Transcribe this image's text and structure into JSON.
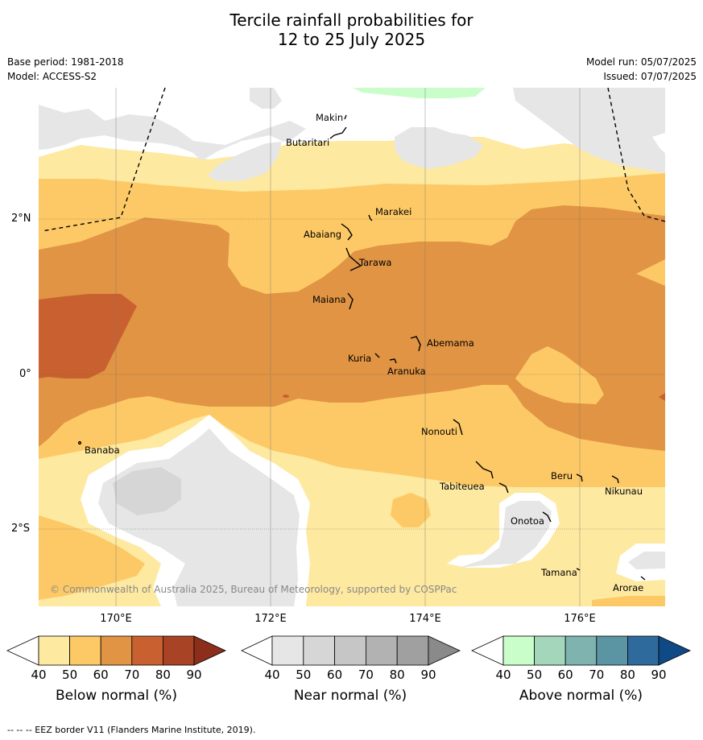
{
  "title": {
    "line1": "Tercile rainfall probabilities for",
    "line2": "12 to 25 July 2025"
  },
  "meta": {
    "base_period": "Base period: 1981-2018",
    "model": "Model: ACCESS-S2",
    "model_run": "Model run: 05/07/2025",
    "issued": "Issued: 07/07/2025"
  },
  "map": {
    "lat_labels": [
      "2°N",
      "0°",
      "2°S"
    ],
    "lon_labels": [
      "170°E",
      "172°E",
      "174°E",
      "176°E"
    ],
    "copyright": "© Commonwealth of Australia 2025, Bureau of Meteorology, supported by COSPPac",
    "places": [
      "Makin",
      "Butaritari",
      "Marakei",
      "Abaiang",
      "Tarawa",
      "Maiana",
      "Abemama",
      "Kuria",
      "Aranuka",
      "Nonouti",
      "Banaba",
      "Tabiteuea",
      "Beru",
      "Nikunau",
      "Onotoa",
      "Tamana",
      "Arorae"
    ],
    "colors": {
      "below_40": "#ffffff",
      "below_50": "#fee9a0",
      "below_60": "#fdc966",
      "below_70": "#e09444",
      "below_80": "#c8612f",
      "near_40": "#e6e6e6",
      "near_50": "#d6d6d6",
      "above_40": "#c9fdca"
    }
  },
  "colorbars": [
    {
      "label": "Below normal (%)",
      "ticks": [
        "40",
        "50",
        "60",
        "70",
        "80",
        "90"
      ],
      "colors": [
        "#ffffff",
        "#fee9a0",
        "#fdc966",
        "#e09444",
        "#c8612f",
        "#a84425",
        "#8b2e1c"
      ]
    },
    {
      "label": "Near normal (%)",
      "ticks": [
        "40",
        "50",
        "60",
        "70",
        "80",
        "90"
      ],
      "colors": [
        "#ffffff",
        "#e6e6e6",
        "#d6d6d6",
        "#c6c6c6",
        "#b2b2b2",
        "#a0a0a0",
        "#8a8a8a"
      ]
    },
    {
      "label": "Above normal (%)",
      "ticks": [
        "40",
        "50",
        "60",
        "70",
        "80",
        "90"
      ],
      "colors": [
        "#ffffff",
        "#c9fdca",
        "#a3d6ba",
        "#7fb3b0",
        "#5b94a2",
        "#2f6a9c",
        "#0f4a86"
      ]
    }
  ],
  "footnote": "-- -- -- EEZ border V11 (Flanders Marine Institute, 2019)."
}
